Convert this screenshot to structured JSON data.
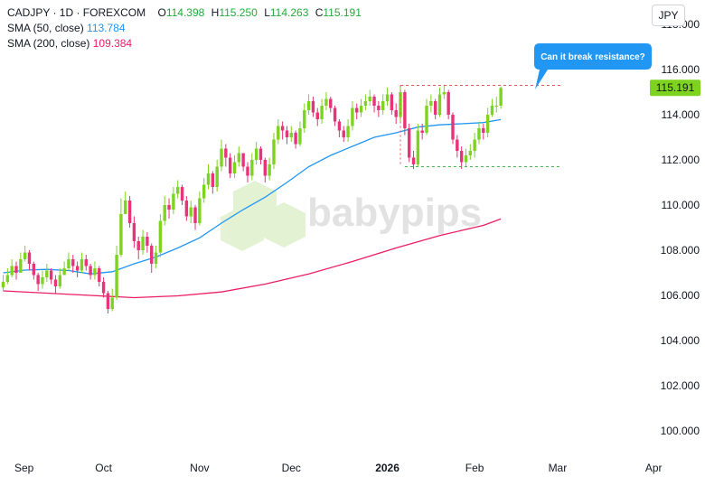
{
  "header": {
    "symbol_line": "CADJPY · 1D · FOREXCOM",
    "ohlc": [
      {
        "key": "O",
        "value": "114.398"
      },
      {
        "key": "H",
        "value": "115.250"
      },
      {
        "key": "L",
        "value": "114.263"
      },
      {
        "key": "C",
        "value": "115.191"
      }
    ],
    "sma50_label": "SMA (50, close)",
    "sma50_value": "113.784",
    "sma200_label": "SMA (200, close)",
    "sma200_value": "109.384"
  },
  "currency": "JPY",
  "last_price_label": "115.191",
  "annotation": "Can it break resistance?",
  "watermark": "babypips",
  "colors": {
    "up": "#7ed321",
    "down": "#e6337a",
    "sma50": "#2196f3",
    "sma200": "#e91e63",
    "resistance": "#ef5350",
    "support": "#4caf50",
    "callout": "#2196f3"
  },
  "chart_data": {
    "type": "candlestick",
    "symbol": "CADJPY",
    "timeframe": "1D",
    "y_ticks": [
      "100.000",
      "102.000",
      "104.000",
      "106.000",
      "108.000",
      "110.000",
      "112.000",
      "114.000",
      "116.000",
      "118.000"
    ],
    "ylim": [
      99.0,
      118.6
    ],
    "x_ticks": [
      {
        "label": "Sep",
        "index": 0,
        "bold": false
      },
      {
        "label": "Oct",
        "index": 23,
        "bold": false
      },
      {
        "label": "Nov",
        "index": 45,
        "bold": false
      },
      {
        "label": "Dec",
        "index": 66,
        "bold": false
      },
      {
        "label": "2026",
        "index": 88,
        "bold": true
      },
      {
        "label": "Feb",
        "index": 108,
        "bold": false
      },
      {
        "label": "Mar",
        "index": 127,
        "bold": false
      },
      {
        "label": "Apr",
        "index": 149,
        "bold": false
      }
    ],
    "close": [
      106.6,
      106.9,
      107.3,
      107.0,
      107.6,
      107.9,
      107.4,
      106.9,
      106.5,
      106.8,
      107.1,
      106.7,
      106.4,
      106.9,
      107.2,
      107.6,
      107.3,
      107.1,
      107.6,
      107.3,
      106.9,
      107.2,
      106.6,
      106.1,
      105.4,
      105.9,
      107.8,
      109.6,
      110.2,
      109.2,
      108.4,
      108.0,
      108.6,
      108.2,
      107.4,
      107.9,
      109.3,
      110.0,
      109.8,
      110.5,
      110.8,
      110.2,
      109.5,
      109.9,
      109.2,
      110.3,
      110.9,
      111.4,
      110.8,
      111.7,
      112.5,
      112.1,
      111.4,
      111.9,
      112.3,
      111.7,
      111.3,
      112.0,
      112.5,
      112.0,
      111.3,
      111.8,
      112.9,
      113.5,
      113.3,
      113.0,
      113.2,
      112.7,
      113.4,
      114.2,
      114.6,
      114.1,
      113.8,
      114.4,
      114.7,
      114.3,
      113.7,
      113.3,
      113.0,
      113.5,
      114.3,
      114.1,
      114.4,
      114.6,
      114.8,
      114.4,
      114.2,
      114.6,
      114.9,
      114.2,
      113.9,
      115.0,
      113.4,
      112.1,
      111.8,
      113.3,
      113.2,
      114.4,
      114.6,
      114.0,
      114.9,
      115.0,
      114.0,
      112.9,
      112.4,
      111.9,
      112.2,
      112.4,
      112.9,
      113.4,
      113.2,
      114.0,
      114.4,
      114.4,
      115.191
    ],
    "high": [
      106.9,
      107.2,
      107.6,
      107.5,
      107.9,
      108.2,
      108.0,
      107.5,
      107.0,
      107.1,
      107.4,
      107.2,
      106.9,
      107.2,
      107.5,
      107.9,
      107.8,
      107.5,
      107.9,
      107.8,
      107.4,
      107.5,
      107.3,
      106.8,
      106.2,
      106.3,
      108.2,
      110.3,
      110.6,
      110.4,
      109.5,
      108.6,
      108.9,
      108.8,
      108.3,
      108.2,
      109.6,
      110.4,
      110.3,
      110.8,
      111.1,
      110.9,
      110.4,
      110.2,
      110.0,
      110.6,
      111.2,
      111.8,
      111.5,
      112.0,
      112.9,
      112.7,
      112.3,
      112.2,
      112.6,
      112.3,
      111.9,
      112.3,
      112.8,
      112.6,
      112.1,
      112.1,
      113.2,
      113.8,
      113.7,
      113.5,
      113.5,
      113.3,
      113.7,
      114.5,
      114.9,
      114.8,
      114.3,
      114.7,
      115.0,
      114.8,
      114.4,
      113.8,
      113.5,
      113.8,
      114.6,
      114.5,
      114.7,
      114.9,
      115.1,
      114.9,
      114.6,
      114.9,
      115.2,
      115.0,
      114.5,
      115.3,
      115.1,
      113.6,
      112.4,
      113.6,
      113.6,
      114.7,
      114.9,
      114.7,
      115.2,
      115.3,
      115.1,
      114.1,
      113.1,
      112.6,
      112.5,
      112.7,
      113.2,
      113.7,
      113.6,
      114.3,
      114.7,
      114.8,
      115.25
    ],
    "low": [
      106.2,
      106.5,
      106.8,
      106.7,
      107.0,
      107.5,
      107.1,
      106.7,
      106.2,
      106.3,
      106.6,
      106.5,
      106.1,
      106.3,
      106.9,
      107.1,
      107.0,
      106.8,
      107.0,
      107.1,
      106.7,
      106.7,
      106.4,
      105.9,
      105.2,
      105.3,
      105.8,
      107.7,
      109.6,
      109.0,
      108.1,
      107.6,
      107.8,
      107.9,
      107.0,
      107.2,
      107.7,
      109.1,
      109.4,
      109.6,
      110.3,
      110.0,
      109.3,
      109.2,
      108.9,
      109.1,
      110.1,
      110.7,
      110.5,
      110.6,
      111.5,
      111.7,
      111.2,
      111.2,
      111.7,
      111.5,
      111.0,
      111.1,
      111.8,
      111.8,
      111.0,
      111.1,
      111.6,
      112.7,
      112.9,
      112.7,
      112.8,
      112.5,
      112.6,
      113.2,
      114.0,
      113.9,
      113.5,
      113.6,
      114.2,
      114.1,
      113.5,
      113.0,
      112.8,
      112.8,
      113.3,
      113.8,
      113.9,
      114.2,
      114.4,
      114.1,
      113.9,
      114.0,
      114.4,
      114.0,
      113.6,
      113.7,
      113.1,
      111.9,
      111.6,
      111.7,
      112.9,
      113.1,
      114.1,
      113.8,
      113.9,
      114.7,
      113.8,
      112.7,
      112.1,
      111.6,
      111.7,
      112.0,
      112.1,
      112.7,
      112.9,
      113.0,
      113.9,
      114.1,
      114.263
    ],
    "sma50": [
      {
        "i": 0,
        "v": 107.0
      },
      {
        "i": 5,
        "v": 107.12
      },
      {
        "i": 10,
        "v": 107.15
      },
      {
        "i": 15,
        "v": 107.1
      },
      {
        "i": 20,
        "v": 106.95
      },
      {
        "i": 25,
        "v": 107.05
      },
      {
        "i": 30,
        "v": 107.4
      },
      {
        "i": 35,
        "v": 107.7
      },
      {
        "i": 40,
        "v": 108.1
      },
      {
        "i": 45,
        "v": 108.55
      },
      {
        "i": 50,
        "v": 109.2
      },
      {
        "i": 55,
        "v": 109.8
      },
      {
        "i": 60,
        "v": 110.35
      },
      {
        "i": 65,
        "v": 111.0
      },
      {
        "i": 70,
        "v": 111.7
      },
      {
        "i": 75,
        "v": 112.2
      },
      {
        "i": 80,
        "v": 112.6
      },
      {
        "i": 85,
        "v": 113.0
      },
      {
        "i": 90,
        "v": 113.2
      },
      {
        "i": 95,
        "v": 113.45
      },
      {
        "i": 100,
        "v": 113.55
      },
      {
        "i": 105,
        "v": 113.6
      },
      {
        "i": 110,
        "v": 113.65
      },
      {
        "i": 114,
        "v": 113.784
      }
    ],
    "sma200": [
      {
        "i": 0,
        "v": 106.2
      },
      {
        "i": 10,
        "v": 106.1
      },
      {
        "i": 20,
        "v": 106.0
      },
      {
        "i": 30,
        "v": 105.9
      },
      {
        "i": 40,
        "v": 105.98
      },
      {
        "i": 50,
        "v": 106.15
      },
      {
        "i": 60,
        "v": 106.5
      },
      {
        "i": 70,
        "v": 106.95
      },
      {
        "i": 80,
        "v": 107.5
      },
      {
        "i": 90,
        "v": 108.1
      },
      {
        "i": 100,
        "v": 108.65
      },
      {
        "i": 110,
        "v": 109.1
      },
      {
        "i": 114,
        "v": 109.384
      }
    ],
    "resistance": {
      "value": 115.3,
      "from_index": 91,
      "to_index": 128
    },
    "support": {
      "value": 111.7,
      "from_index": 92,
      "to_index": 128
    }
  }
}
